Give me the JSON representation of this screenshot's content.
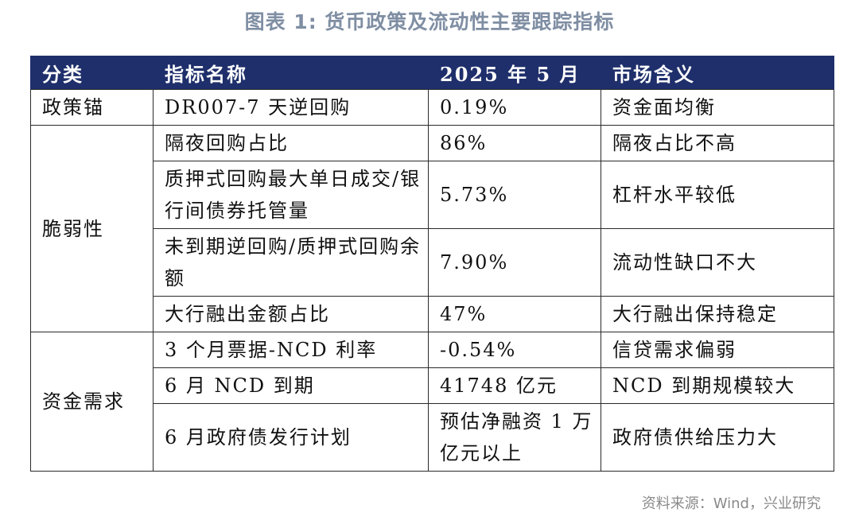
{
  "title": "图表 1: 货币政策及流动性主要跟踪指标",
  "headers": [
    "分类",
    "指标名称",
    "2025 年 5 月",
    "市场含义"
  ],
  "rows": [
    {
      "category": "政策锚",
      "indicator": "DR007-7 天逆回购",
      "value": "0.19%",
      "meaning": "资金面均衡"
    },
    {
      "category": "脆弱性",
      "indicator": "隔夜回购占比",
      "value": "86%",
      "meaning": "隔夜占比不高"
    },
    {
      "indicator": "质押式回购最大单日成交/银行间债券托管量",
      "value": "5.73%",
      "meaning": "杠杆水平较低"
    },
    {
      "indicator": "未到期逆回购/质押式回购余额",
      "value": "7.90%",
      "meaning": "流动性缺口不大"
    },
    {
      "indicator": "大行融出金额占比",
      "value": "47%",
      "meaning": "大行融出保持稳定"
    },
    {
      "category": "资金需求",
      "indicator": "3 个月票据-NCD 利率",
      "value": "-0.54%",
      "meaning": "信贷需求偏弱"
    },
    {
      "indicator": "6 月 NCD 到期",
      "value": "41748 亿元",
      "meaning": "NCD 到期规模较大"
    },
    {
      "indicator": "6 月政府债发行计划",
      "value": "预估净融资 1 万亿元以上",
      "meaning": "政府债供给压力大"
    }
  ],
  "source": "资料来源：Wind，兴业研究"
}
